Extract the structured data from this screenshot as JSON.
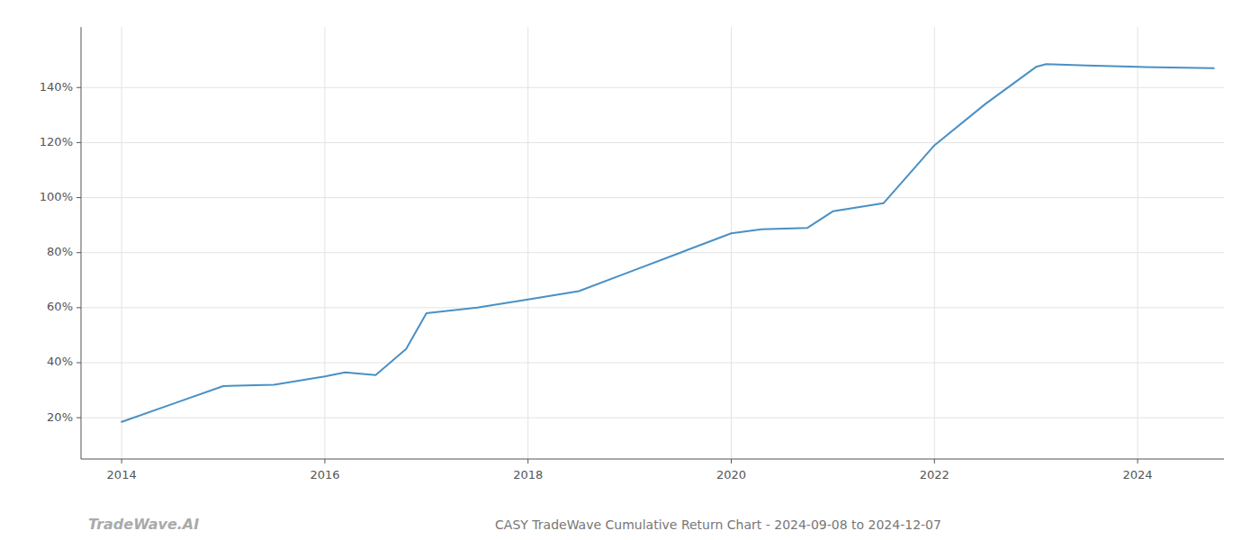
{
  "chart_data": {
    "type": "line",
    "title": "CASY TradeWave Cumulative Return Chart - 2024-09-08 to 2024-12-07",
    "annotations": [
      "TradeWave.AI"
    ],
    "x": [
      2014.0,
      2014.5,
      2015.0,
      2015.5,
      2016.0,
      2016.2,
      2016.5,
      2016.8,
      2017.0,
      2017.5,
      2018.0,
      2018.5,
      2019.0,
      2019.5,
      2020.0,
      2020.3,
      2020.75,
      2021.0,
      2021.5,
      2022.0,
      2022.5,
      2023.0,
      2023.1,
      2023.5,
      2024.0,
      2024.75
    ],
    "values": [
      18.5,
      25.0,
      31.5,
      32.0,
      35.0,
      36.5,
      35.5,
      45.0,
      58.0,
      60.0,
      63.0,
      66.0,
      73.0,
      80.0,
      87.0,
      88.5,
      89.0,
      95.0,
      98.0,
      119.0,
      134.0,
      147.5,
      148.5,
      148.0,
      147.5,
      147.0
    ],
    "color": "#4a90c4",
    "xlim": [
      2013.6,
      2024.85
    ],
    "ylim": [
      5,
      162
    ],
    "xticks": [
      2014,
      2016,
      2018,
      2020,
      2022,
      2024
    ],
    "yticks": [
      {
        "value": 20,
        "label": "20%"
      },
      {
        "value": 40,
        "label": "40%"
      },
      {
        "value": 60,
        "label": "60%"
      },
      {
        "value": 80,
        "label": "80%"
      },
      {
        "value": 100,
        "label": "100%"
      },
      {
        "value": 120,
        "label": "120%"
      },
      {
        "value": 140,
        "label": "140%"
      }
    ],
    "grid": true
  }
}
